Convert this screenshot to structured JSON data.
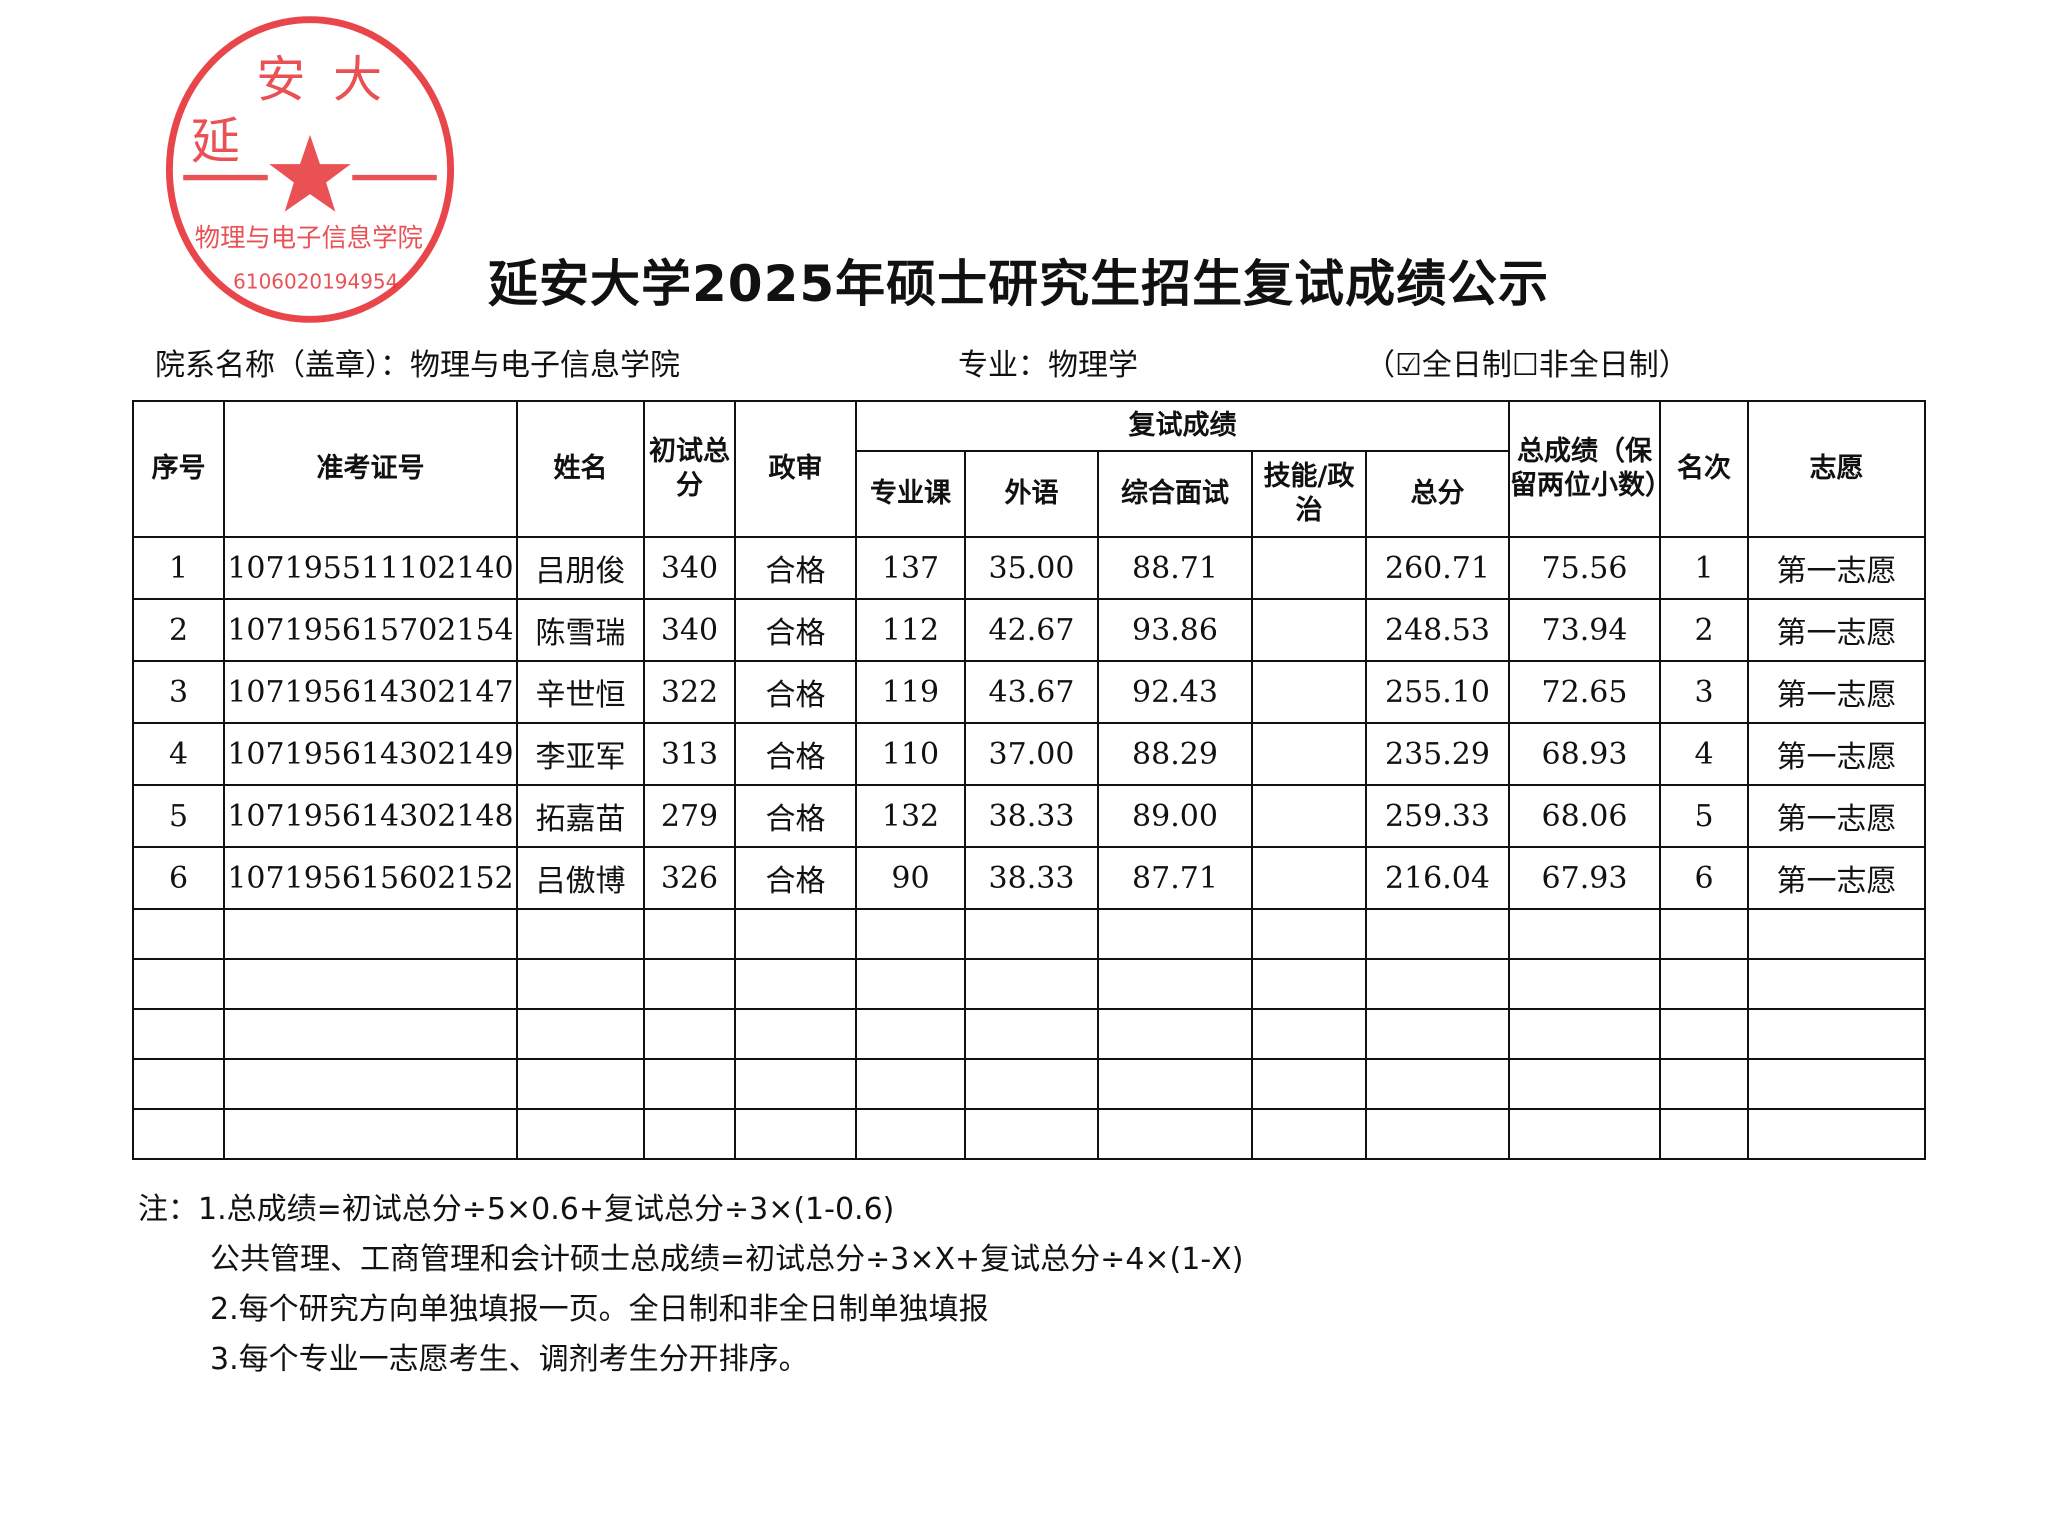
{
  "title": "延安大学2025年硕士研究生招生复试成绩公示",
  "dept_label": "院系名称（盖章）：",
  "dept": "物理与电子信息学院",
  "major_label": "专业：",
  "major": "物理学",
  "mode": "（☑全日制☐非全日制）",
  "stamp": {
    "text": "延安大学",
    "sub": "物理与电子信息学院",
    "code": "6106020194954",
    "color": "#e5262b"
  },
  "headers": {
    "seq": "序号",
    "exam_id": "准考证号",
    "name": "姓名",
    "prelim": "初试总分",
    "political": "政审",
    "retest": "复试成绩",
    "major_course": "专业课",
    "foreign": "外语",
    "interview": "综合面试",
    "skill": "技能/政治",
    "retest_total": "总分",
    "total": "总成绩（保留两位小数）",
    "rank": "名次",
    "choice": "志愿"
  },
  "rows": [
    {
      "seq": "1",
      "id": "107195511102140",
      "name": "吕朋俊",
      "prelim": "340",
      "pol": "合格",
      "major": "137",
      "foreign": "35.00",
      "interview": "88.71",
      "skill": "",
      "rtotal": "260.71",
      "total": "75.56",
      "rank": "1",
      "choice": "第一志愿"
    },
    {
      "seq": "2",
      "id": "107195615702154",
      "name": "陈雪瑞",
      "prelim": "340",
      "pol": "合格",
      "major": "112",
      "foreign": "42.67",
      "interview": "93.86",
      "skill": "",
      "rtotal": "248.53",
      "total": "73.94",
      "rank": "2",
      "choice": "第一志愿"
    },
    {
      "seq": "3",
      "id": "107195614302147",
      "name": "辛世恒",
      "prelim": "322",
      "pol": "合格",
      "major": "119",
      "foreign": "43.67",
      "interview": "92.43",
      "skill": "",
      "rtotal": "255.10",
      "total": "72.65",
      "rank": "3",
      "choice": "第一志愿"
    },
    {
      "seq": "4",
      "id": "107195614302149",
      "name": "李亚军",
      "prelim": "313",
      "pol": "合格",
      "major": "110",
      "foreign": "37.00",
      "interview": "88.29",
      "skill": "",
      "rtotal": "235.29",
      "total": "68.93",
      "rank": "4",
      "choice": "第一志愿"
    },
    {
      "seq": "5",
      "id": "107195614302148",
      "name": "拓嘉苗",
      "prelim": "279",
      "pol": "合格",
      "major": "132",
      "foreign": "38.33",
      "interview": "89.00",
      "skill": "",
      "rtotal": "259.33",
      "total": "68.06",
      "rank": "5",
      "choice": "第一志愿"
    },
    {
      "seq": "6",
      "id": "107195615602152",
      "name": "吕傲博",
      "prelim": "326",
      "pol": "合格",
      "major": "90",
      "foreign": "38.33",
      "interview": "87.71",
      "skill": "",
      "rtotal": "216.04",
      "total": "67.93",
      "rank": "6",
      "choice": "第一志愿"
    }
  ],
  "notes": [
    "注：1.总成绩=初试总分÷5×0.6+复试总分÷3×(1-0.6)",
    "公共管理、工商管理和会计硕士总成绩=初试总分÷3×X+复试总分÷4×(1-X)",
    "2.每个研究方向单独填报一页。全日制和非全日制单独填报",
    "3.每个专业一志愿考生、调剂考生分开排序。"
  ]
}
